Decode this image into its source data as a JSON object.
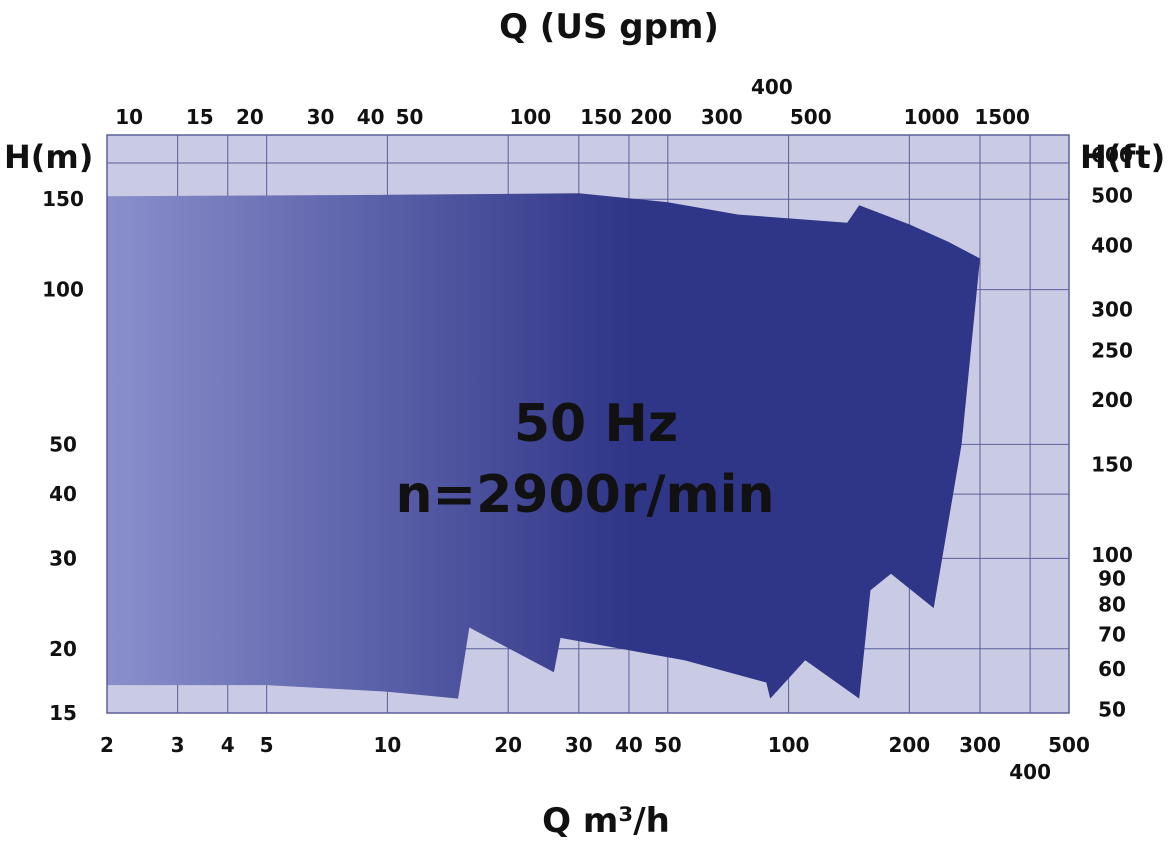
{
  "chart_data": {
    "type": "area",
    "title": "",
    "top_axis_title": "Q (US gpm)",
    "bottom_axis_title": "Q m³/h",
    "left_axis_title": "H(m)",
    "right_axis_title": "H(ft)",
    "annotation_line1": "50 Hz",
    "annotation_line2": "n=2900r/min",
    "x_scale": "log",
    "y_scale": "log",
    "xlim": [
      2,
      500
    ],
    "ylim": [
      15,
      200
    ],
    "bottom_ticks": [
      "2",
      "3",
      "4",
      "5",
      "10",
      "20",
      "30",
      "40",
      "50",
      "100",
      "200",
      "300",
      "400",
      "500"
    ],
    "top_ticks": [
      "10",
      "15",
      "20",
      "30",
      "40",
      "50",
      "100",
      "150",
      "200",
      "300",
      "400",
      "500",
      "1000",
      "1500"
    ],
    "left_ticks": [
      "15",
      "20",
      "30",
      "40",
      "50",
      "100",
      "150"
    ],
    "right_ticks": [
      "50",
      "60",
      "70",
      "80",
      "90",
      "100",
      "150",
      "200",
      "250",
      "300",
      "400",
      "500",
      "600"
    ],
    "grid": true,
    "colors": {
      "plot_background": "#c9cbe4",
      "grid_line": "#5c5f9a",
      "region_light": "#8a8fcc",
      "region_dark": "#2f3587"
    },
    "operating_region": {
      "upper_boundary": [
        {
          "q": 2,
          "h": 152
        },
        {
          "q": 10,
          "h": 153
        },
        {
          "q": 30,
          "h": 154
        },
        {
          "q": 50,
          "h": 148
        },
        {
          "q": 75,
          "h": 140
        },
        {
          "q": 140,
          "h": 135
        },
        {
          "q": 150,
          "h": 146
        },
        {
          "q": 200,
          "h": 134
        },
        {
          "q": 250,
          "h": 124
        },
        {
          "q": 300,
          "h": 115
        }
      ],
      "lower_boundary": [
        {
          "q": 300,
          "h": 115
        },
        {
          "q": 270,
          "h": 50
        },
        {
          "q": 230,
          "h": 24
        },
        {
          "q": 180,
          "h": 28
        },
        {
          "q": 160,
          "h": 26
        },
        {
          "q": 150,
          "h": 16
        },
        {
          "q": 110,
          "h": 19
        },
        {
          "q": 90,
          "h": 16
        },
        {
          "q": 88,
          "h": 17.2
        },
        {
          "q": 55,
          "h": 19
        },
        {
          "q": 27,
          "h": 21
        },
        {
          "q": 26,
          "h": 18
        },
        {
          "q": 16,
          "h": 22
        },
        {
          "q": 15,
          "h": 16
        },
        {
          "q": 10,
          "h": 16.5
        },
        {
          "q": 5,
          "h": 17
        },
        {
          "q": 2,
          "h": 17
        }
      ]
    }
  }
}
